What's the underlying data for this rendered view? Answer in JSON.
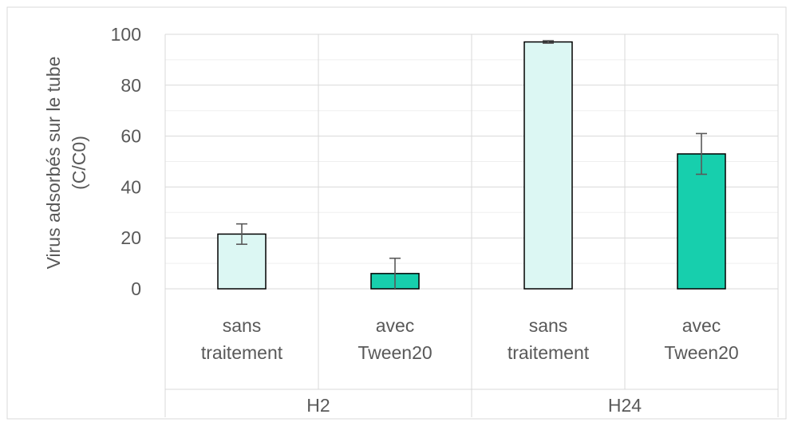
{
  "chart_data": {
    "type": "bar",
    "title": "",
    "ylabel_lines": [
      "Virus adsorbés sur le tube",
      "(C/C0)"
    ],
    "xlabel": "",
    "ylim": [
      0,
      100
    ],
    "yticks": [
      0,
      20,
      40,
      60,
      80,
      100
    ],
    "grid": true,
    "legend": "none",
    "groups": [
      {
        "label": "H2",
        "bars": [
          {
            "label_lines": [
              "sans",
              "traitement"
            ],
            "value": 21.5,
            "error": 4.0,
            "color": "#dcf7f3"
          },
          {
            "label_lines": [
              "avec",
              "Tween20"
            ],
            "value": 6.0,
            "error": 6.0,
            "color": "#17cfad"
          }
        ]
      },
      {
        "label": "H24",
        "bars": [
          {
            "label_lines": [
              "sans",
              "traitement"
            ],
            "value": 97.0,
            "error": 0.5,
            "color": "#dcf7f3"
          },
          {
            "label_lines": [
              "avec",
              "Tween20"
            ],
            "value": 53.0,
            "error": 8.0,
            "color": "#17cfad"
          }
        ]
      }
    ]
  }
}
